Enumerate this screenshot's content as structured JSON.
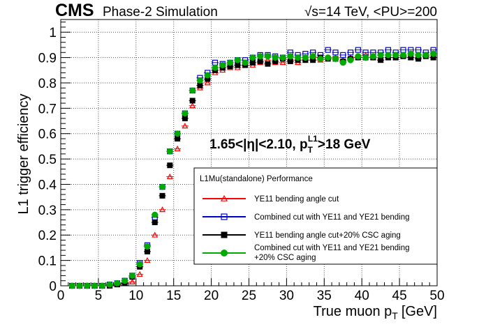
{
  "header": {
    "experiment": "CMS",
    "subtitle": "Phase-2 Simulation",
    "conditions": "√s=14 TeV, <PU>=200"
  },
  "annotation": {
    "region_text": "1.65<|η|<2.10, p",
    "region_sub": "T",
    "region_sup": "L1",
    "threshold_text": ">18 GeV"
  },
  "legend": {
    "title": "L1Mu(standalone) Performance"
  },
  "chart_data": {
    "type": "scatter",
    "xlabel": "True muon p",
    "xlabel_sub": "T",
    "xlabel_unit": "[GeV]",
    "ylabel": "L1 trigger efficiency",
    "xlim": [
      0,
      50
    ],
    "ylim": [
      0,
      1.05
    ],
    "grid": true,
    "legend_position": "bottom-right",
    "xticks": [
      0,
      5,
      10,
      15,
      20,
      25,
      30,
      35,
      40,
      45,
      50
    ],
    "yticks": [
      0,
      0.1,
      0.2,
      0.3,
      0.4,
      0.5,
      0.6,
      0.7,
      0.8,
      0.9,
      1
    ],
    "x": [
      1.5,
      2.5,
      3.5,
      4.5,
      5.5,
      6.5,
      7.5,
      8.5,
      9.5,
      10.5,
      11.5,
      12.5,
      13.5,
      14.5,
      15.5,
      16.5,
      17.5,
      18.5,
      19.5,
      20.5,
      21.5,
      22.5,
      23.5,
      24.5,
      25.5,
      26.5,
      27.5,
      28.5,
      29.5,
      30.5,
      31.5,
      32.5,
      33.5,
      34.5,
      35.5,
      36.5,
      37.5,
      38.5,
      39.5,
      40.5,
      41.5,
      42.5,
      43.5,
      44.5,
      45.5,
      46.5,
      47.5,
      48.5,
      49.5
    ],
    "series": [
      {
        "name": "YE11 bending angle cut",
        "color": "#ff0000",
        "marker": "open-triangle",
        "values": [
          0,
          0,
          0,
          0,
          0,
          0,
          0.005,
          0.01,
          0.015,
          0.045,
          0.1,
          0.2,
          0.3,
          0.43,
          0.54,
          0.63,
          0.71,
          0.78,
          0.8,
          0.84,
          0.85,
          0.86,
          0.86,
          0.87,
          0.87,
          0.88,
          0.89,
          0.88,
          0.88,
          0.89,
          0.88,
          0.89,
          0.9,
          0.89,
          0.9,
          0.9,
          0.89,
          0.9,
          0.9,
          0.91,
          0.9,
          0.89,
          0.9,
          0.9,
          0.91,
          0.9,
          0.91,
          0.91,
          0.9
        ]
      },
      {
        "name": "Combined cut with YE11 and YE21 bending",
        "color": "#0000cc",
        "marker": "open-square",
        "values": [
          0,
          0,
          0,
          0,
          0,
          0.005,
          0.01,
          0.02,
          0.04,
          0.09,
          0.16,
          0.27,
          0.39,
          0.53,
          0.6,
          0.68,
          0.77,
          0.82,
          0.84,
          0.88,
          0.875,
          0.88,
          0.89,
          0.89,
          0.9,
          0.91,
          0.91,
          0.905,
          0.9,
          0.92,
          0.91,
          0.915,
          0.92,
          0.91,
          0.93,
          0.92,
          0.91,
          0.92,
          0.93,
          0.92,
          0.92,
          0.92,
          0.93,
          0.92,
          0.93,
          0.93,
          0.93,
          0.92,
          0.93
        ]
      },
      {
        "name": "YE11 bending angle cut+20% CSC aging",
        "color": "#000000",
        "marker": "filled-square",
        "values": [
          0,
          0,
          0,
          0,
          0,
          0,
          0.005,
          0.01,
          0.035,
          0.075,
          0.135,
          0.25,
          0.355,
          0.475,
          0.58,
          0.66,
          0.73,
          0.79,
          0.815,
          0.85,
          0.86,
          0.865,
          0.87,
          0.87,
          0.88,
          0.885,
          0.875,
          0.885,
          0.895,
          0.885,
          0.89,
          0.89,
          0.89,
          0.9,
          0.895,
          0.895,
          0.885,
          0.895,
          0.9,
          0.9,
          0.9,
          0.89,
          0.9,
          0.9,
          0.905,
          0.9,
          0.895,
          0.905,
          0.9
        ]
      },
      {
        "name": "Combined cut with YE11 and YE21 bending +20% CSC aging",
        "legend_lines": [
          "Combined cut with YE11 and YE21 bending",
          "+20% CSC aging"
        ],
        "color": "#00aa00",
        "marker": "filled-circle",
        "values": [
          0,
          0,
          0,
          0,
          0,
          0.005,
          0.01,
          0.02,
          0.04,
          0.085,
          0.155,
          0.28,
          0.39,
          0.53,
          0.6,
          0.68,
          0.77,
          0.81,
          0.83,
          0.86,
          0.87,
          0.88,
          0.89,
          0.88,
          0.9,
          0.905,
          0.905,
          0.9,
          0.9,
          0.905,
          0.9,
          0.9,
          0.905,
          0.895,
          0.9,
          0.895,
          0.88,
          0.89,
          0.905,
          0.9,
          0.905,
          0.91,
          0.91,
          0.91,
          0.91,
          0.915,
          0.91,
          0.91,
          0.915
        ]
      }
    ]
  }
}
